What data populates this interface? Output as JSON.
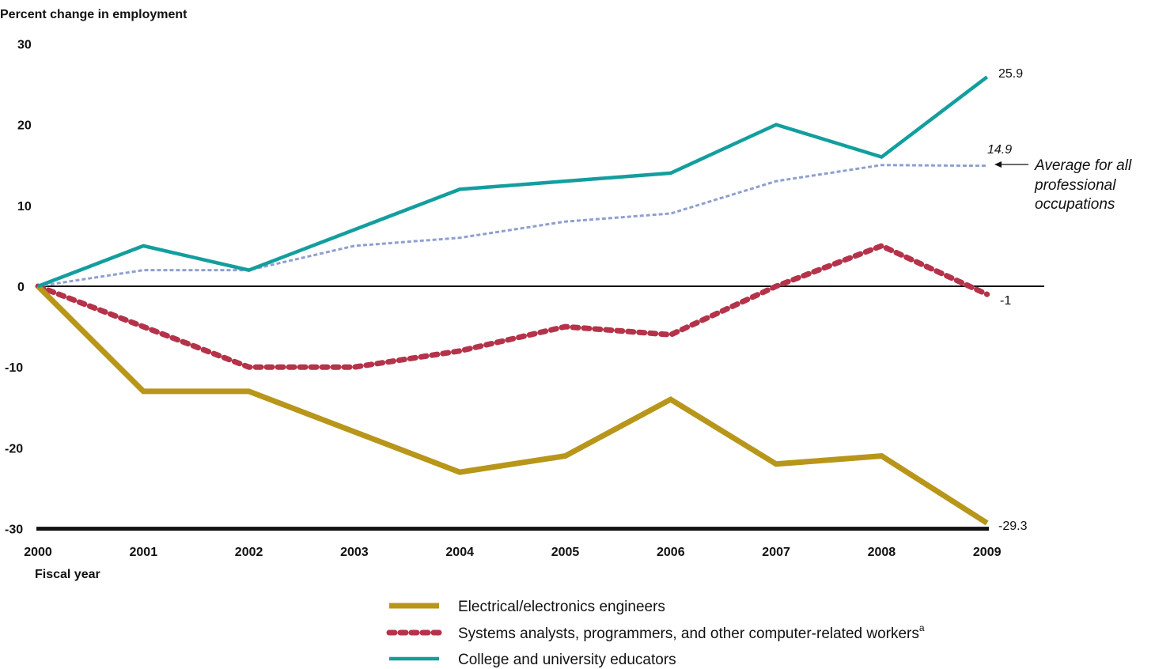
{
  "chart_data": {
    "type": "line",
    "ylabel": "Percent change in employment",
    "xlabel": "Fiscal year",
    "ylim": [
      -30,
      30
    ],
    "yticks": [
      30,
      20,
      10,
      0,
      -10,
      -20,
      -30
    ],
    "x": [
      "2000",
      "2001",
      "2002",
      "2003",
      "2004",
      "2005",
      "2006",
      "2007",
      "2008",
      "2009"
    ],
    "series": [
      {
        "key": "ee",
        "name": "Electrical/electronics engineers",
        "color": "#b8961a",
        "style": "solid-thick",
        "values": [
          0,
          -13,
          -13,
          -18,
          -23,
          -21,
          -14,
          -22,
          -21,
          -29.3
        ],
        "end_label": "-29.3"
      },
      {
        "key": "sys",
        "name": "Systems analysts, programmers, and other computer-related workers",
        "name_superscript": "a",
        "color": "#b5334a",
        "style": "dashed-thick",
        "values": [
          0,
          -5,
          -10,
          -10,
          -8,
          -5,
          -6,
          0,
          5,
          -1
        ],
        "end_label": "-1"
      },
      {
        "key": "edu",
        "name": "College and university educators",
        "color": "#139e9e",
        "style": "solid",
        "values": [
          0,
          5,
          2,
          7,
          12,
          13,
          14,
          20,
          16,
          25.9
        ],
        "end_label": "25.9"
      },
      {
        "key": "avg",
        "name": "Average for all professional occupations",
        "color": "#8f9fd0",
        "style": "dotted",
        "values": [
          0,
          2,
          2,
          5,
          6,
          8,
          9,
          13,
          15,
          14.9
        ],
        "end_label": "14.9",
        "annotation_lines": [
          "Average for all",
          "professional",
          "occupations"
        ]
      }
    ],
    "legend_order": [
      "ee",
      "sys",
      "edu"
    ],
    "legend_position": "bottom-center",
    "grid": false
  }
}
